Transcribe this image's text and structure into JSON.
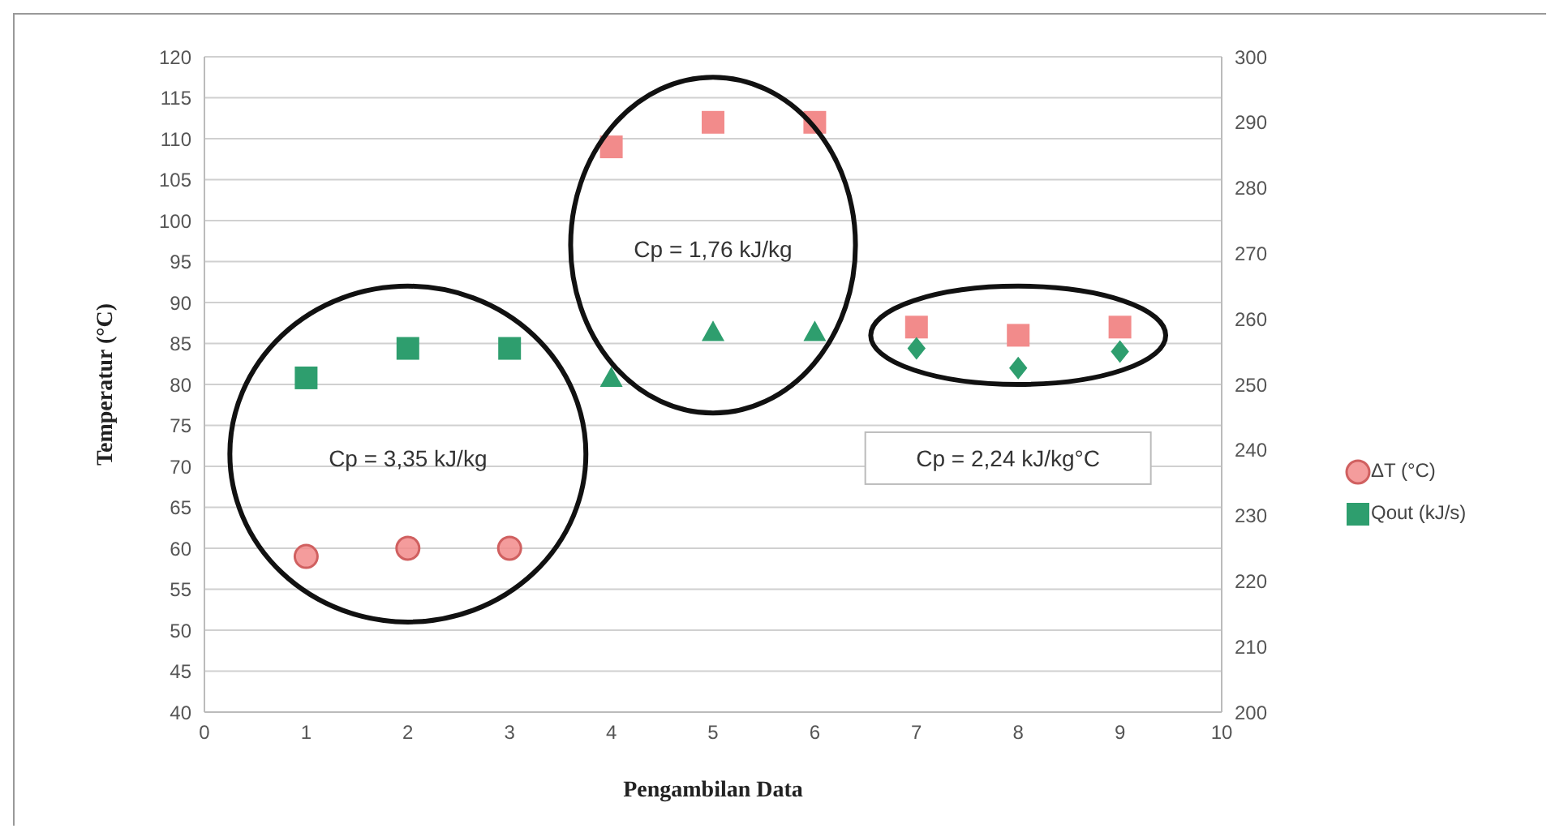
{
  "chart_data": {
    "type": "scatter",
    "xlabel": "Pengambilan Data",
    "ylabel": "Temperatur (°C)",
    "xlim": [
      0,
      10
    ],
    "xticks": [
      0,
      1,
      2,
      3,
      4,
      5,
      6,
      7,
      8,
      9,
      10
    ],
    "ylim": [
      40,
      120
    ],
    "yticks": [
      40,
      45,
      50,
      55,
      60,
      65,
      70,
      75,
      80,
      85,
      90,
      95,
      100,
      105,
      110,
      115,
      120
    ],
    "y2lim": [
      200,
      300
    ],
    "y2ticks": [
      200,
      210,
      220,
      230,
      240,
      250,
      260,
      270,
      280,
      290,
      300
    ],
    "grid": "y",
    "legend": "right",
    "annotations": [
      "Cp = 3,35 kJ/kg",
      "Cp = 1,76 kJ/kg",
      "Cp = 2,24 kJ/kg°C"
    ],
    "series": [
      {
        "name": "ΔT (°C)",
        "color": "#f28b8b",
        "marker": "circle",
        "x": [
          1,
          2,
          3
        ],
        "values": [
          59,
          60,
          60
        ]
      },
      {
        "color": "#f28b8b",
        "marker": "square",
        "x": [
          4,
          5,
          6
        ],
        "values": [
          109,
          112,
          112
        ]
      },
      {
        "color": "#f28b8b",
        "marker": "square",
        "x": [
          7,
          8,
          9
        ],
        "values": [
          87,
          86,
          87
        ]
      },
      {
        "name": "Qout (kJ/s)",
        "color": "#2e9e6e",
        "marker": "square",
        "axis": "y2",
        "x": [
          1,
          2,
          3
        ],
        "values": [
          251,
          255.5,
          255.5
        ]
      },
      {
        "color": "#2e9e6e",
        "marker": "triangle",
        "axis": "y2",
        "x": [
          4,
          5,
          6
        ],
        "values": [
          251,
          258,
          258
        ]
      },
      {
        "color": "#2e9e6e",
        "marker": "diamond",
        "axis": "y2",
        "x": [
          7,
          8,
          9
        ],
        "values": [
          255.5,
          252.5,
          255
        ]
      }
    ]
  }
}
